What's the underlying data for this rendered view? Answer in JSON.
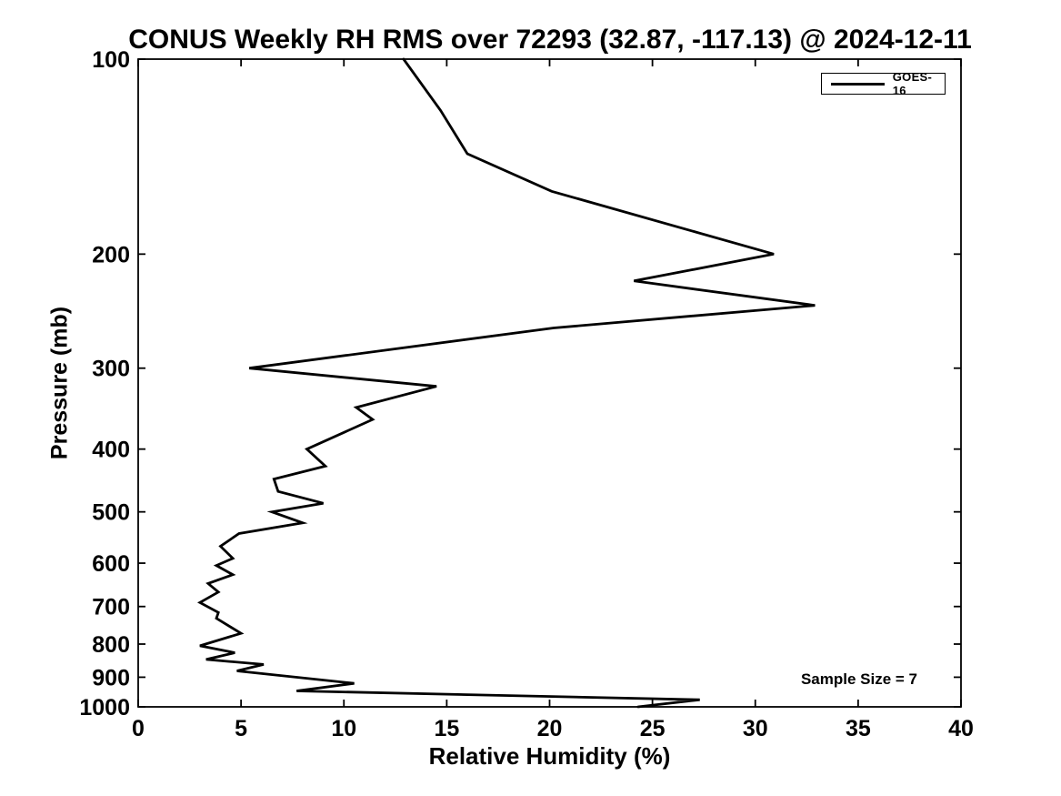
{
  "chart_data": {
    "type": "line",
    "title": "CONUS Weekly RH RMS over 72293 (32.87, -117.13) @ 2024-12-11",
    "xlabel": "Relative Humidity (%)",
    "ylabel": "Pressure (mb)",
    "xlim": [
      0,
      40
    ],
    "ylim": [
      100,
      1000
    ],
    "y_scale": "log",
    "y_axis_inverted": true,
    "grid": false,
    "x_ticks": [
      0,
      5,
      10,
      15,
      20,
      25,
      30,
      35,
      40
    ],
    "y_ticks": [
      100,
      200,
      300,
      400,
      500,
      600,
      700,
      800,
      900,
      1000
    ],
    "legend": {
      "position": "top-right",
      "entries": [
        {
          "label": "GOES-16",
          "color": "#000000"
        }
      ]
    },
    "annotation": {
      "text": "Sample Size = 7"
    },
    "series": [
      {
        "name": "GOES-16",
        "color": "#000000",
        "points_format": [
          "relative_humidity_pct",
          "pressure_mb"
        ],
        "points": [
          [
            12.9,
            100
          ],
          [
            14.7,
            120
          ],
          [
            16.0,
            140
          ],
          [
            20.1,
            160
          ],
          [
            30.9,
            200
          ],
          [
            24.1,
            220
          ],
          [
            32.9,
            240
          ],
          [
            20.2,
            260
          ],
          [
            5.4,
            300
          ],
          [
            14.5,
            320
          ],
          [
            10.6,
            345
          ],
          [
            11.4,
            360
          ],
          [
            8.2,
            400
          ],
          [
            9.1,
            425
          ],
          [
            6.6,
            445
          ],
          [
            6.8,
            465
          ],
          [
            9.0,
            485
          ],
          [
            6.5,
            500
          ],
          [
            8.0,
            520
          ],
          [
            4.9,
            540
          ],
          [
            4.0,
            565
          ],
          [
            4.6,
            590
          ],
          [
            3.8,
            605
          ],
          [
            4.6,
            625
          ],
          [
            3.4,
            645
          ],
          [
            3.9,
            665
          ],
          [
            3.0,
            690
          ],
          [
            3.9,
            715
          ],
          [
            3.8,
            730
          ],
          [
            5.0,
            770
          ],
          [
            3.0,
            805
          ],
          [
            4.7,
            825
          ],
          [
            3.3,
            845
          ],
          [
            6.1,
            860
          ],
          [
            4.8,
            880
          ],
          [
            10.5,
            920
          ],
          [
            7.7,
            945
          ],
          [
            27.3,
            975
          ],
          [
            24.3,
            1000
          ]
        ]
      }
    ]
  }
}
